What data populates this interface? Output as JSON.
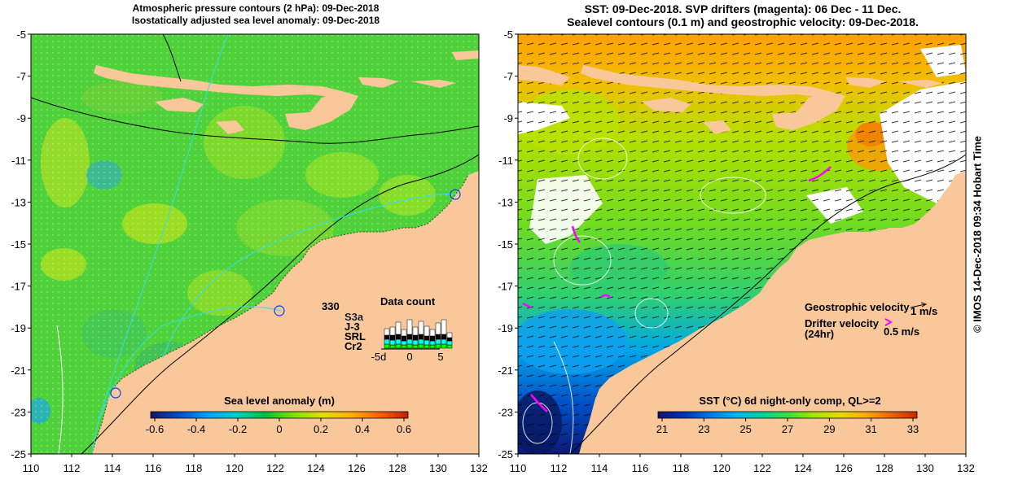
{
  "left_panel": {
    "title_line1": "Atmospheric pressure contours (2 hPa): 09-Dec-2018",
    "title_line2": "Isostatically adjusted sea level anomaly: 09-Dec-2018",
    "colorbar": {
      "label": "Sea level anomaly (m)",
      "ticks": [
        "-0.6",
        "-0.4",
        "-0.2",
        "0",
        "0.2",
        "0.4",
        "0.6"
      ],
      "colors": [
        "#1b1464",
        "#0050c8",
        "#00a0ff",
        "#00d0c8",
        "#00c040",
        "#80e000",
        "#e0e000",
        "#ffb000",
        "#ff6000",
        "#c02000"
      ]
    },
    "data_count": {
      "title": "Data count",
      "number": "330",
      "missions": [
        {
          "label": "S3a",
          "color": "#ffffff"
        },
        {
          "label": "J-3",
          "color": "#000000"
        },
        {
          "label": "SRL",
          "color": "#00ffff"
        },
        {
          "label": "Cr2",
          "color": "#00ff00"
        }
      ],
      "axis_ticks": [
        "-5d",
        "0",
        "5"
      ]
    }
  },
  "right_panel": {
    "title_line1": "SST: 09-Dec-2018. SVP drifters (magenta): 06 Dec - 11 Dec.",
    "title_line2": "Sealevel contours (0.1 m) and geostrophic velocity: 09-Dec-2018.",
    "geostrophic_label": "Geostrophic velocity",
    "geostrophic_unit": "1 m/s",
    "drifter_label_1": "Drifter velocity",
    "drifter_label_2": "(24hr)",
    "drifter_unit": "0.5 m/s",
    "colorbar": {
      "label": "SST (°C) 6d night-only comp, QL>=2",
      "ticks": [
        "21",
        "23",
        "25",
        "27",
        "29",
        "31",
        "33"
      ],
      "colors": [
        "#14146e",
        "#0032b4",
        "#0078e6",
        "#00b4f0",
        "#00d2a0",
        "#3cdc3c",
        "#a0e600",
        "#e6dc00",
        "#ffaa00",
        "#f06400",
        "#c82800"
      ]
    }
  },
  "axes": {
    "lon_ticks": [
      "110",
      "112",
      "114",
      "116",
      "118",
      "120",
      "122",
      "124",
      "126",
      "128",
      "130",
      "132"
    ],
    "lat_ticks": [
      "-5",
      "-7",
      "-9",
      "-11",
      "-13",
      "-15",
      "-17",
      "-19",
      "-21",
      "-23",
      "-25"
    ]
  },
  "side_label": "© IMOS 14-Dec-2018 09:34 Hobart Time",
  "colors": {
    "land": "#f8c89a",
    "ocean_left": "#4fd13a",
    "ocean_right": "#8ce02a",
    "drifter": "#ff00ff"
  }
}
